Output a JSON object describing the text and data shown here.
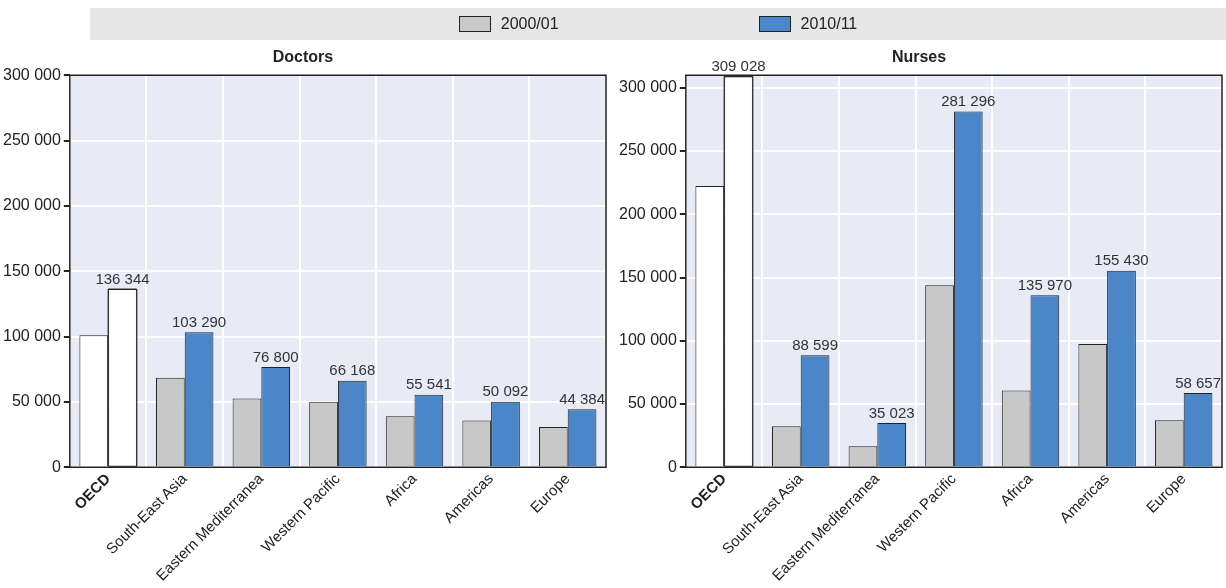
{
  "chart_data": [
    {
      "type": "bar",
      "title": "Doctors",
      "categories": [
        "OECD",
        "South-East Asia",
        "Eastern Mediterranea",
        "Western Pacific",
        "Africa",
        "Americas",
        "Europe"
      ],
      "series": [
        {
          "name": "2000/01",
          "color": "#c8c8c8",
          "colors": [
            "#ffffff",
            "#c8c8c8",
            "#c8c8c8",
            "#c8c8c8",
            "#c8c8c8",
            "#c8c8c8",
            "#c8c8c8"
          ],
          "values": [
            101000,
            68500,
            52600,
            50200,
            39100,
            35800,
            30900
          ]
        },
        {
          "name": "2010/11",
          "color": "#4a86c8",
          "colors": [
            "#ffffff",
            "#4a86c8",
            "#4a86c8",
            "#4a86c8",
            "#4a86c8",
            "#4a86c8",
            "#4a86c8"
          ],
          "values": [
            136344,
            103290,
            76800,
            66168,
            55541,
            50092,
            44384
          ],
          "value_labels": [
            "136 344",
            "103 290",
            "76 800",
            "66 168",
            "55 541",
            "50 092",
            "44 384"
          ]
        }
      ],
      "ylim": [
        0,
        300000
      ],
      "yticks": [
        0,
        {
          "value": 50000,
          "label": "50 000"
        },
        {
          "value": 100000,
          "label": "100 000"
        },
        {
          "value": 150000,
          "label": "150 000"
        },
        {
          "value": 200000,
          "label": "200 000"
        },
        {
          "value": 250000,
          "label": "250 000"
        },
        {
          "value": 300000,
          "label": "300 000"
        }
      ],
      "grid": true,
      "legend": "top"
    },
    {
      "type": "bar",
      "title": "Nurses",
      "categories": [
        "OECD",
        "South-East Asia",
        "Eastern Mediterranea",
        "Western Pacific",
        "Africa",
        "Americas",
        "Europe"
      ],
      "series": [
        {
          "name": "2000/01",
          "color": "#c8c8c8",
          "colors": [
            "#ffffff",
            "#c8c8c8",
            "#c8c8c8",
            "#c8c8c8",
            "#c8c8c8",
            "#c8c8c8",
            "#c8c8c8"
          ],
          "values": [
            222400,
            32500,
            16600,
            143900,
            60700,
            97500,
            37100
          ]
        },
        {
          "name": "2010/11",
          "color": "#4a86c8",
          "colors": [
            "#ffffff",
            "#4a86c8",
            "#4a86c8",
            "#4a86c8",
            "#4a86c8",
            "#4a86c8",
            "#4a86c8"
          ],
          "values": [
            309028,
            88599,
            35023,
            281296,
            135970,
            155430,
            58657
          ],
          "value_labels": [
            "309 028",
            "88 599",
            "35 023",
            "281 296",
            "135 970",
            "155 430",
            "58 657"
          ]
        }
      ],
      "ylim": [
        0,
        310000
      ],
      "yticks": [
        0,
        {
          "value": 50000,
          "label": "50 000"
        },
        {
          "value": 100000,
          "label": "100 000"
        },
        {
          "value": 150000,
          "label": "150 000"
        },
        {
          "value": 200000,
          "label": "200 000"
        },
        {
          "value": 250000,
          "label": "250 000"
        },
        {
          "value": 300000,
          "label": "300 000"
        }
      ],
      "grid": true,
      "legend": "top"
    }
  ]
}
